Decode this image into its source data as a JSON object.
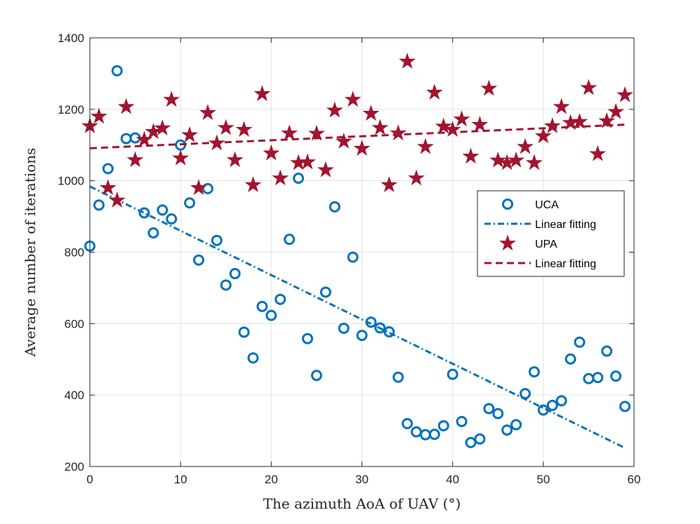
{
  "chart_data": {
    "type": "scatter",
    "title": "",
    "xlabel": "The azimuth AoA of UAV (°)",
    "ylabel": "Average number of iterations",
    "xlim": [
      0,
      60
    ],
    "ylim": [
      200,
      1400
    ],
    "xticks": [
      0,
      10,
      20,
      30,
      40,
      50,
      60
    ],
    "yticks": [
      200,
      400,
      600,
      800,
      1000,
      1200,
      1400
    ],
    "grid": true,
    "legend_position": "right",
    "series": [
      {
        "name": "UCA",
        "kind": "scatter",
        "marker": "circle",
        "color": "#0072BD",
        "x": [
          0,
          1,
          2,
          3,
          4,
          5,
          6,
          7,
          8,
          9,
          10,
          11,
          12,
          13,
          14,
          15,
          16,
          17,
          18,
          19,
          20,
          21,
          22,
          23,
          24,
          25,
          26,
          27,
          28,
          29,
          30,
          31,
          32,
          33,
          34,
          35,
          36,
          37,
          38,
          39,
          40,
          41,
          42,
          43,
          44,
          45,
          46,
          47,
          48,
          49,
          50,
          51,
          52,
          53,
          54,
          55,
          56,
          57,
          58,
          59
        ],
        "y": [
          817,
          932,
          1034,
          1308,
          1118,
          1120,
          910,
          854,
          918,
          893,
          1100,
          938,
          778,
          978,
          833,
          708,
          740,
          576,
          504,
          648,
          623,
          668,
          836,
          1007,
          558,
          455,
          688,
          927,
          587,
          786,
          567,
          604,
          588,
          577,
          450,
          320,
          297,
          289,
          290,
          314,
          458,
          326,
          267,
          277,
          362,
          348,
          302,
          317,
          404,
          465,
          358,
          371,
          384,
          501,
          548,
          446,
          449,
          523,
          453,
          368
        ]
      },
      {
        "name": "Linear fitting",
        "kind": "line",
        "dash": "dashdot",
        "color": "#0072BD",
        "x": [
          0,
          59
        ],
        "y": [
          984,
          252
        ]
      },
      {
        "name": "UPA",
        "kind": "scatter",
        "marker": "star",
        "color": "#A2142F",
        "x": [
          0,
          1,
          2,
          3,
          4,
          5,
          6,
          7,
          8,
          9,
          10,
          11,
          12,
          13,
          14,
          15,
          16,
          17,
          18,
          19,
          20,
          21,
          22,
          23,
          24,
          25,
          26,
          27,
          28,
          29,
          30,
          31,
          32,
          33,
          34,
          35,
          36,
          37,
          38,
          39,
          40,
          41,
          42,
          43,
          44,
          45,
          46,
          47,
          48,
          49,
          50,
          51,
          52,
          53,
          54,
          55,
          56,
          57,
          58,
          59
        ],
        "y": [
          1153,
          1180,
          980,
          945,
          1207,
          1058,
          1115,
          1137,
          1147,
          1227,
          1063,
          1128,
          980,
          1190,
          1105,
          1148,
          1058,
          1143,
          988,
          1243,
          1077,
          1007,
          1133,
          1050,
          1052,
          1132,
          1030,
          1197,
          1110,
          1227,
          1090,
          1188,
          1148,
          988,
          1133,
          1334,
          1007,
          1095,
          1247,
          1152,
          1143,
          1172,
          1068,
          1157,
          1258,
          1057,
          1050,
          1057,
          1095,
          1050,
          1125,
          1153,
          1207,
          1162,
          1165,
          1260,
          1075,
          1167,
          1193,
          1240
        ]
      },
      {
        "name": "Linear fitting",
        "kind": "line",
        "dash": "dashed",
        "color": "#A2142F",
        "x": [
          0,
          59
        ],
        "y": [
          1091,
          1157
        ]
      }
    ]
  }
}
